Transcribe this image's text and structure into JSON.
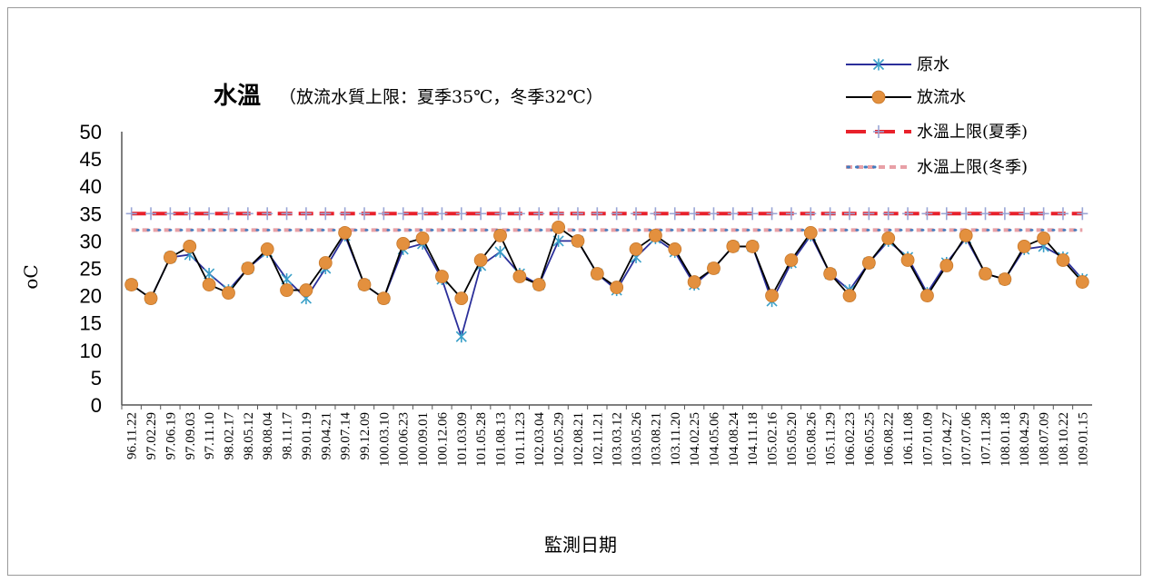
{
  "chart_data": {
    "type": "line",
    "title": "水溫",
    "subtitle": "（放流水質上限：夏季35℃，冬季32℃）",
    "ylabel": "oC",
    "xlabel": "監測日期",
    "ylim": [
      0,
      50
    ],
    "yticks": [
      0,
      5,
      10,
      15,
      20,
      25,
      30,
      35,
      40,
      45,
      50
    ],
    "grid": false,
    "legend_position": "top-right",
    "categories": [
      "96.11.22",
      "97.02.29",
      "97.06.19",
      "97.09.03",
      "97.11.10",
      "98.02.17",
      "98.05.12",
      "98.08.04",
      "98.11.17",
      "99.01.19",
      "99.04.21",
      "99.07.14",
      "99.12.09",
      "100.03.10",
      "100.06.23",
      "100.09.01",
      "100.12.06",
      "101.03.09",
      "101.05.28",
      "101.08.13",
      "101.11.23",
      "102.03.04",
      "102.05.29",
      "102.08.21",
      "102.11.21",
      "103.03.12",
      "103.05.26",
      "103.08.21",
      "103.11.20",
      "104.02.25",
      "104.05.06",
      "104.08.24",
      "104.11.18",
      "105.02.16",
      "105.05.20",
      "105.08.26",
      "105.11.29",
      "106.02.23",
      "106.05.25",
      "106.08.22",
      "106.11.08",
      "107.01.09",
      "107.04.27",
      "107.07.06",
      "107.11.28",
      "108.01.18",
      "108.04.29",
      "108.07.09",
      "108.10.22",
      "109.01.15"
    ],
    "series": [
      {
        "name": "原水",
        "color": "#2b2f9a",
        "marker": "asterisk",
        "values": [
          22,
          19.5,
          27,
          27.5,
          24,
          21,
          25,
          28,
          23,
          19.5,
          25,
          31,
          22,
          19.5,
          28.5,
          29.5,
          23,
          12.5,
          25.5,
          28,
          24,
          22,
          30,
          30,
          24,
          21,
          27,
          30.5,
          28,
          22,
          25,
          29,
          29,
          19,
          26,
          31,
          24,
          21,
          26,
          30,
          27,
          20.5,
          26,
          30.5,
          24,
          23,
          28.5,
          29,
          27,
          23
        ]
      },
      {
        "name": "放流水",
        "color": "#000000",
        "marker": "circle",
        "marker_color": "#e3903e",
        "values": [
          22,
          19.5,
          27,
          29,
          22,
          20.5,
          25,
          28.5,
          21,
          21,
          26,
          31.5,
          22,
          19.5,
          29.5,
          30.5,
          23.5,
          19.5,
          26.5,
          31,
          23.5,
          22,
          32.5,
          30,
          24,
          21.5,
          28.5,
          31,
          28.5,
          22.5,
          25,
          29,
          29,
          20,
          26.5,
          31.5,
          24,
          20,
          26,
          30.5,
          26.5,
          20,
          25.5,
          31,
          24,
          23,
          29,
          30.5,
          26.5,
          22.5
        ]
      },
      {
        "name": "水溫上限(夏季)",
        "color": "#e8212b",
        "marker": "plus",
        "marker_color": "#9aa6d6",
        "constant": 35
      },
      {
        "name": "水溫上限(冬季)",
        "color": "#e8a0a6",
        "dot_color": "#3f7cc0",
        "constant": 32
      }
    ]
  }
}
